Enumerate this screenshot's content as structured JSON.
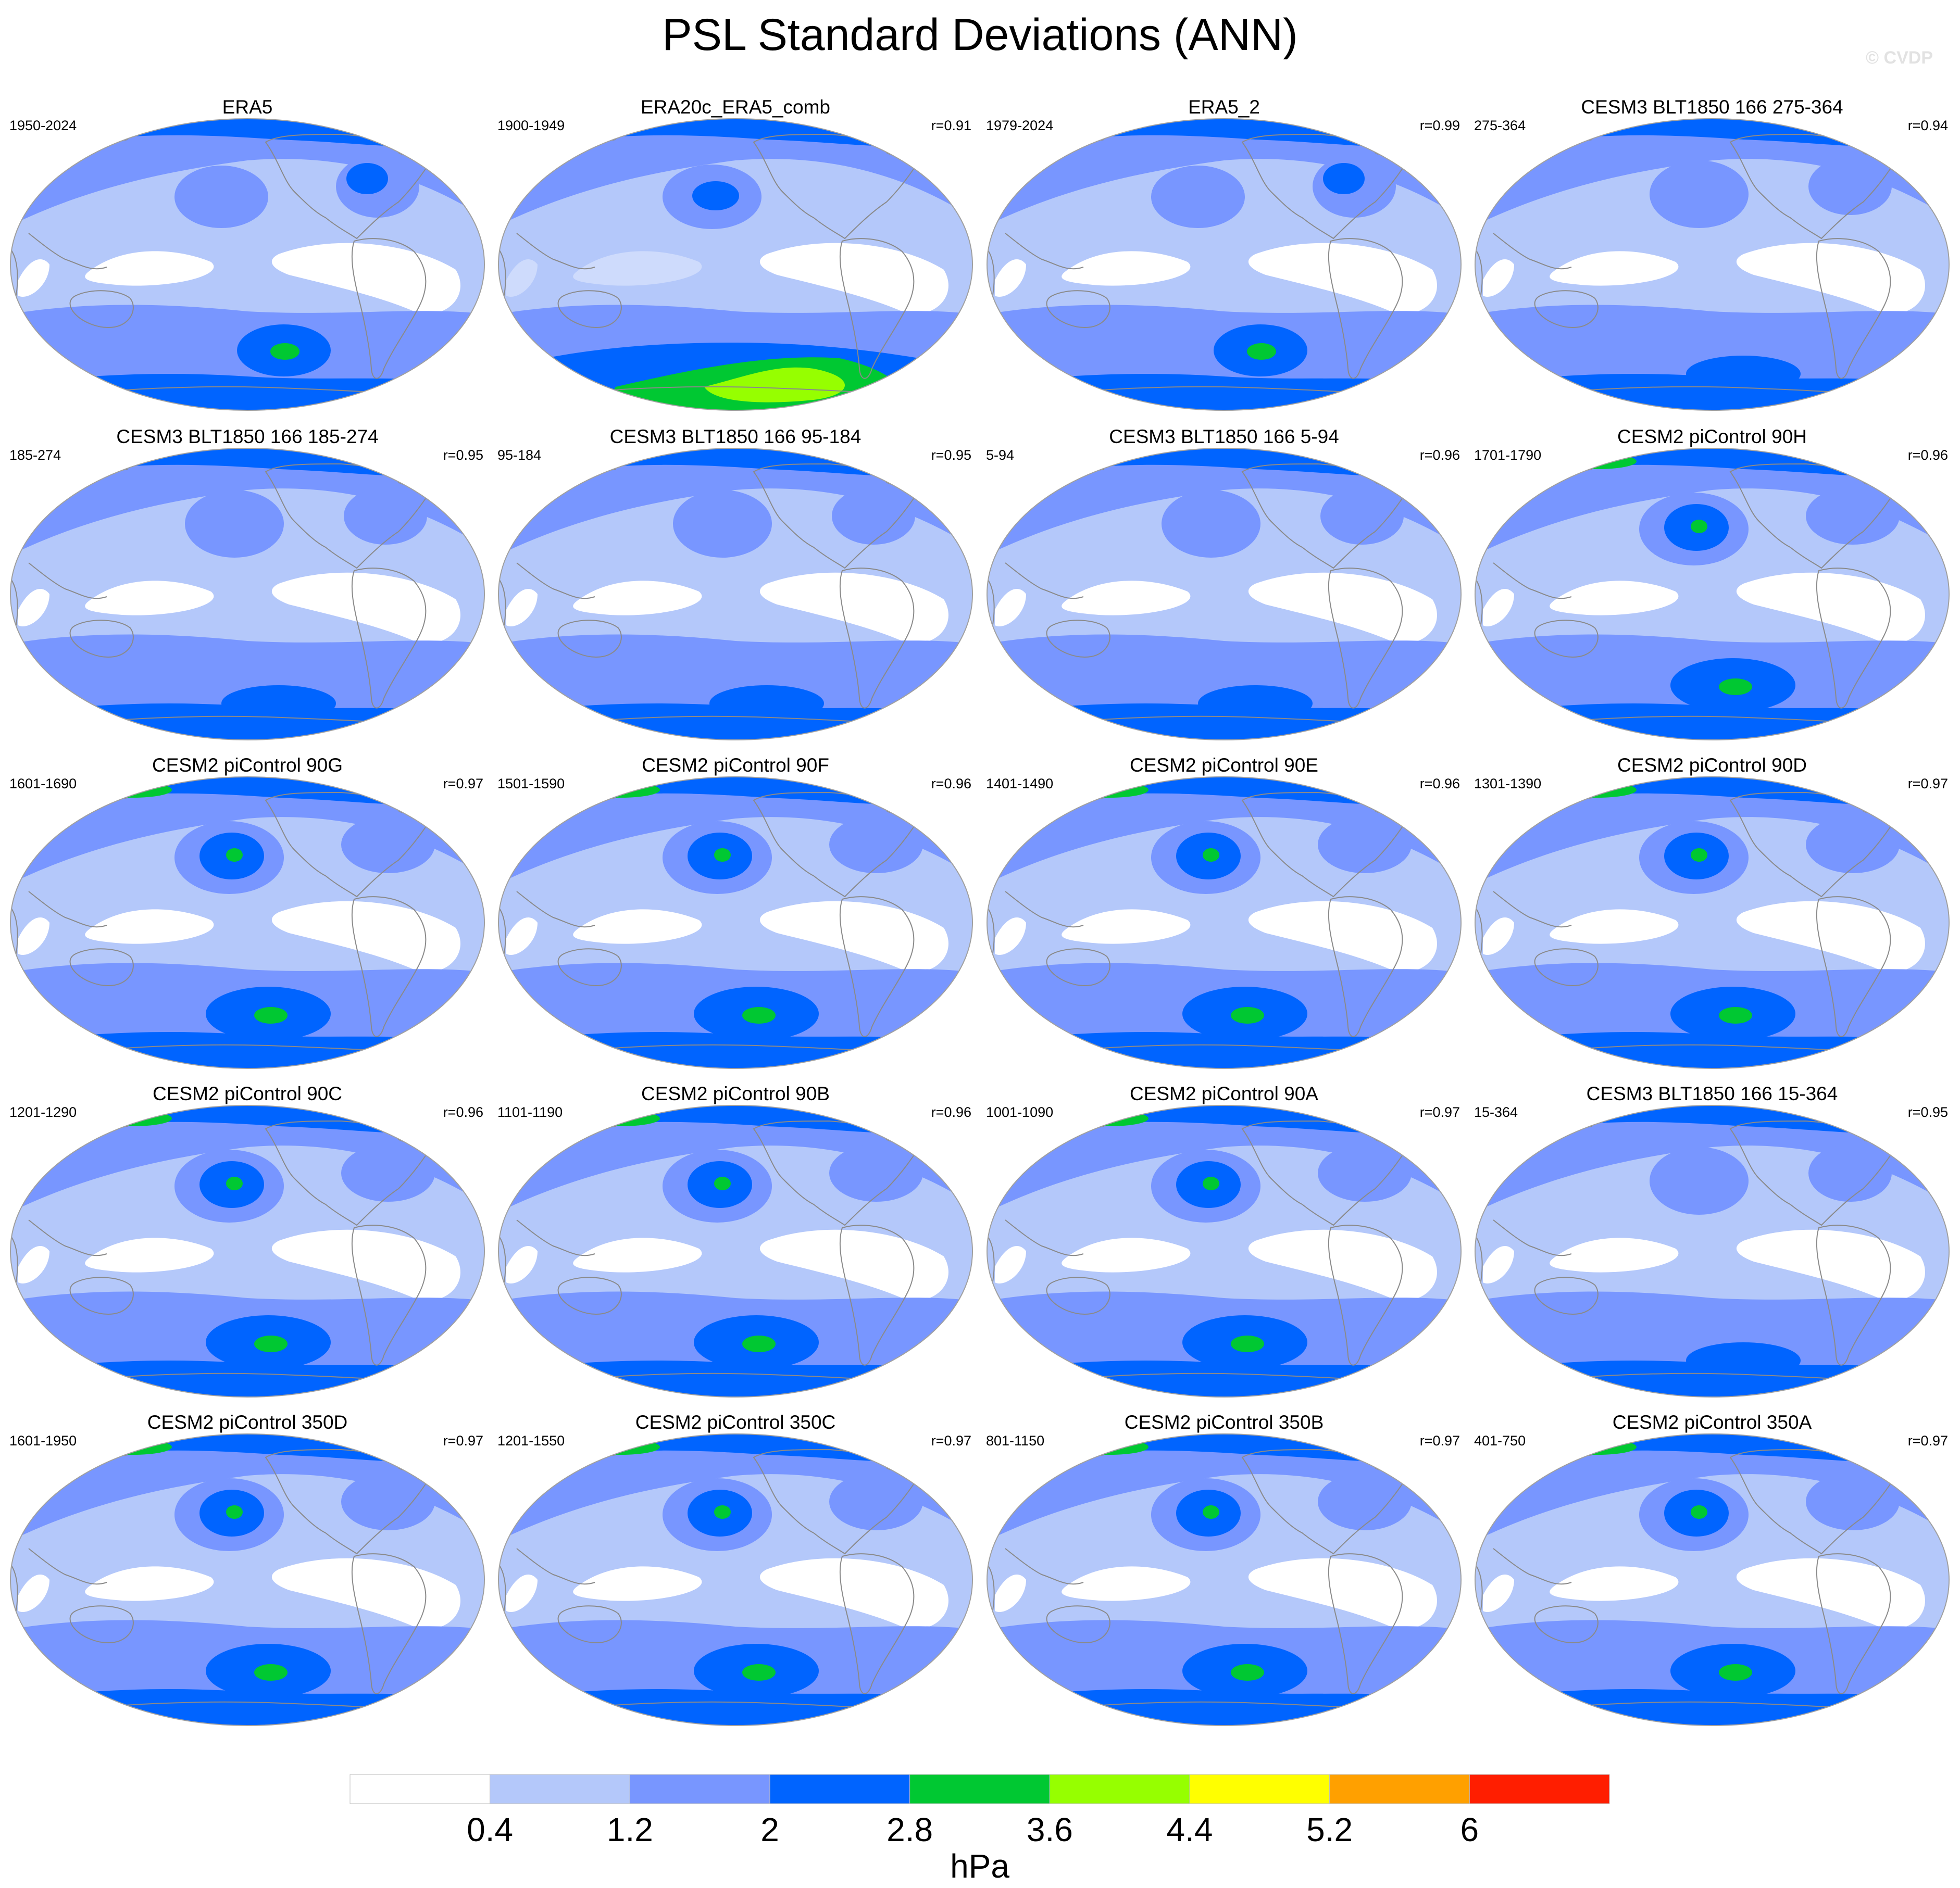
{
  "title": "PSL Standard Deviations (ANN)",
  "watermark": "© CVDP",
  "colorbar": {
    "units": "hPa",
    "levels": [
      "0.4",
      "1.2",
      "2",
      "2.8",
      "3.6",
      "4.4",
      "5.2",
      "6"
    ],
    "colors": [
      "#ffffff",
      "#b4c8fa",
      "#7896ff",
      "#0064ff",
      "#00c832",
      "#96ff00",
      "#ffff00",
      "#ffa000",
      "#ff1e00"
    ]
  },
  "map_colors": {
    "land_outline": "#8a8a8a",
    "class_0": "#ffffff",
    "class_1": "#b4c8fa",
    "class_2": "#7896ff",
    "class_3": "#0064ff",
    "class_4": "#00c832",
    "class_5": "#96ff00"
  },
  "panels": [
    {
      "title": "ERA5",
      "years": "1950-2024",
      "r": "",
      "variant": "era5"
    },
    {
      "title": "ERA20c_ERA5_comb",
      "years": "1900-1949",
      "r": "r=0.91",
      "variant": "era20c"
    },
    {
      "title": "ERA5_2",
      "years": "1979-2024",
      "r": "r=0.99",
      "variant": "era5"
    },
    {
      "title": "CESM3 BLT1850 166 275-364",
      "years": "275-364",
      "r": "r=0.94",
      "variant": "cesm3"
    },
    {
      "title": "CESM3 BLT1850 166 185-274",
      "years": "185-274",
      "r": "r=0.95",
      "variant": "cesm3"
    },
    {
      "title": "CESM3 BLT1850 166 95-184",
      "years": "95-184",
      "r": "r=0.95",
      "variant": "cesm3"
    },
    {
      "title": "CESM3 BLT1850 166 5-94",
      "years": "5-94",
      "r": "r=0.96",
      "variant": "cesm3"
    },
    {
      "title": "CESM2 piControl 90H",
      "years": "1701-1790",
      "r": "r=0.96",
      "variant": "cesm2"
    },
    {
      "title": "CESM2 piControl 90G",
      "years": "1601-1690",
      "r": "r=0.97",
      "variant": "cesm2"
    },
    {
      "title": "CESM2 piControl 90F",
      "years": "1501-1590",
      "r": "r=0.96",
      "variant": "cesm2"
    },
    {
      "title": "CESM2 piControl 90E",
      "years": "1401-1490",
      "r": "r=0.96",
      "variant": "cesm2"
    },
    {
      "title": "CESM2 piControl 90D",
      "years": "1301-1390",
      "r": "r=0.97",
      "variant": "cesm2"
    },
    {
      "title": "CESM2 piControl 90C",
      "years": "1201-1290",
      "r": "r=0.96",
      "variant": "cesm2"
    },
    {
      "title": "CESM2 piControl 90B",
      "years": "1101-1190",
      "r": "r=0.96",
      "variant": "cesm2"
    },
    {
      "title": "CESM2 piControl 90A",
      "years": "1001-1090",
      "r": "r=0.97",
      "variant": "cesm2"
    },
    {
      "title": "CESM3 BLT1850 166 15-364",
      "years": "15-364",
      "r": "r=0.95",
      "variant": "cesm3"
    },
    {
      "title": "CESM2 piControl 350D",
      "years": "1601-1950",
      "r": "r=0.97",
      "variant": "cesm2"
    },
    {
      "title": "CESM2 piControl 350C",
      "years": "1201-1550",
      "r": "r=0.97",
      "variant": "cesm2"
    },
    {
      "title": "CESM2 piControl 350B",
      "years": "801-1150",
      "r": "r=0.97",
      "variant": "cesm2"
    },
    {
      "title": "CESM2 piControl 350A",
      "years": "401-750",
      "r": "r=0.97",
      "variant": "cesm2"
    }
  ]
}
